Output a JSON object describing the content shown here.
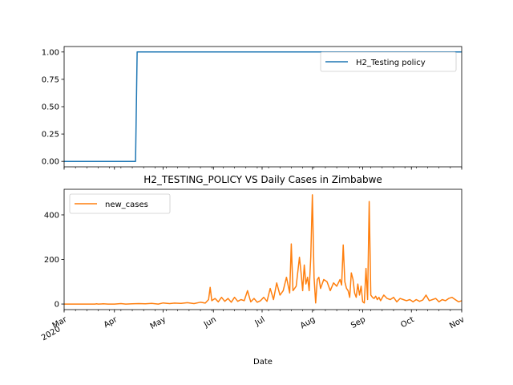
{
  "chart_data": [
    {
      "type": "line",
      "title": "",
      "xlabel": "",
      "ylabel": "",
      "ylim": [
        -0.05,
        1.05
      ],
      "yticks": [
        0.0,
        0.25,
        0.5,
        0.75,
        1.0
      ],
      "ytick_labels": [
        "0.00",
        "0.25",
        "0.50",
        "0.75",
        "1.00"
      ],
      "grid": false,
      "legend_position": "upper right",
      "series": [
        {
          "name": "H2_Testing policy",
          "color": "#1f77b4",
          "x": [
            "2020-03-01",
            "2020-04-14",
            "2020-04-15",
            "2020-11-01"
          ],
          "values": [
            0,
            0,
            1,
            1
          ]
        }
      ]
    },
    {
      "type": "line",
      "title": "H2_TESTING_POLICY VS Daily Cases in Zimbabwe",
      "xlabel": "Date",
      "ylabel": "",
      "ylim": [
        -25,
        515
      ],
      "yticks": [
        0,
        200,
        400
      ],
      "ytick_labels": [
        "0",
        "200",
        "400"
      ],
      "xticks": [
        "2020-03-01",
        "2020-04-01",
        "2020-05-01",
        "2020-06-01",
        "2020-07-01",
        "2020-08-01",
        "2020-09-01",
        "2020-10-01",
        "2020-11-01"
      ],
      "xtick_labels": [
        "Mar\n2020",
        "Apr",
        "May",
        "Jun",
        "Jul",
        "Aug",
        "Sep",
        "Oct",
        "Nov"
      ],
      "grid": false,
      "legend_position": "upper left",
      "series": [
        {
          "name": "new_cases",
          "color": "#ff7f0e",
          "x": [
            "2020-03-01",
            "2020-03-20",
            "2020-03-21",
            "2020-03-22",
            "2020-03-25",
            "2020-03-28",
            "2020-04-01",
            "2020-04-05",
            "2020-04-08",
            "2020-04-12",
            "2020-04-16",
            "2020-04-20",
            "2020-04-24",
            "2020-04-28",
            "2020-05-01",
            "2020-05-05",
            "2020-05-08",
            "2020-05-12",
            "2020-05-16",
            "2020-05-20",
            "2020-05-24",
            "2020-05-27",
            "2020-05-29",
            "2020-05-30",
            "2020-05-31",
            "2020-06-02",
            "2020-06-04",
            "2020-06-06",
            "2020-06-08",
            "2020-06-10",
            "2020-06-12",
            "2020-06-14",
            "2020-06-16",
            "2020-06-18",
            "2020-06-20",
            "2020-06-22",
            "2020-06-24",
            "2020-06-26",
            "2020-06-28",
            "2020-06-30",
            "2020-07-02",
            "2020-07-04",
            "2020-07-06",
            "2020-07-08",
            "2020-07-10",
            "2020-07-12",
            "2020-07-14",
            "2020-07-16",
            "2020-07-18",
            "2020-07-19",
            "2020-07-20",
            "2020-07-22",
            "2020-07-24",
            "2020-07-25",
            "2020-07-26",
            "2020-07-27",
            "2020-07-28",
            "2020-07-29",
            "2020-07-30",
            "2020-07-31",
            "2020-08-01",
            "2020-08-02",
            "2020-08-03",
            "2020-08-04",
            "2020-08-05",
            "2020-08-06",
            "2020-08-08",
            "2020-08-10",
            "2020-08-12",
            "2020-08-14",
            "2020-08-16",
            "2020-08-18",
            "2020-08-19",
            "2020-08-20",
            "2020-08-21",
            "2020-08-22",
            "2020-08-23",
            "2020-08-24",
            "2020-08-25",
            "2020-08-26",
            "2020-08-27",
            "2020-08-28",
            "2020-08-29",
            "2020-08-30",
            "2020-08-31",
            "2020-09-01",
            "2020-09-02",
            "2020-09-03",
            "2020-09-04",
            "2020-09-05",
            "2020-09-06",
            "2020-09-07",
            "2020-09-08",
            "2020-09-09",
            "2020-09-10",
            "2020-09-11",
            "2020-09-12",
            "2020-09-14",
            "2020-09-16",
            "2020-09-18",
            "2020-09-20",
            "2020-09-22",
            "2020-09-24",
            "2020-09-26",
            "2020-09-28",
            "2020-09-30",
            "2020-10-02",
            "2020-10-04",
            "2020-10-06",
            "2020-10-08",
            "2020-10-10",
            "2020-10-12",
            "2020-10-14",
            "2020-10-16",
            "2020-10-18",
            "2020-10-20",
            "2020-10-22",
            "2020-10-24",
            "2020-10-26",
            "2020-10-28",
            "2020-10-30",
            "2020-11-01"
          ],
          "values": [
            0,
            0,
            1,
            0,
            1,
            0,
            0,
            2,
            0,
            1,
            2,
            1,
            3,
            0,
            5,
            2,
            4,
            3,
            6,
            2,
            8,
            4,
            20,
            75,
            15,
            25,
            10,
            30,
            12,
            25,
            8,
            30,
            12,
            20,
            15,
            60,
            10,
            25,
            8,
            15,
            30,
            12,
            70,
            20,
            95,
            40,
            60,
            120,
            50,
            270,
            60,
            80,
            210,
            140,
            60,
            175,
            90,
            120,
            60,
            210,
            490,
            120,
            5,
            110,
            120,
            70,
            110,
            100,
            60,
            95,
            80,
            110,
            85,
            265,
            100,
            70,
            60,
            30,
            140,
            110,
            50,
            30,
            90,
            40,
            80,
            10,
            5,
            160,
            20,
            460,
            40,
            30,
            25,
            35,
            20,
            30,
            15,
            40,
            25,
            20,
            30,
            10,
            25,
            20,
            15,
            20,
            10,
            20,
            12,
            18,
            40,
            15,
            20,
            25,
            10,
            20,
            15,
            25,
            30,
            20,
            10,
            15
          ]
        }
      ]
    }
  ]
}
